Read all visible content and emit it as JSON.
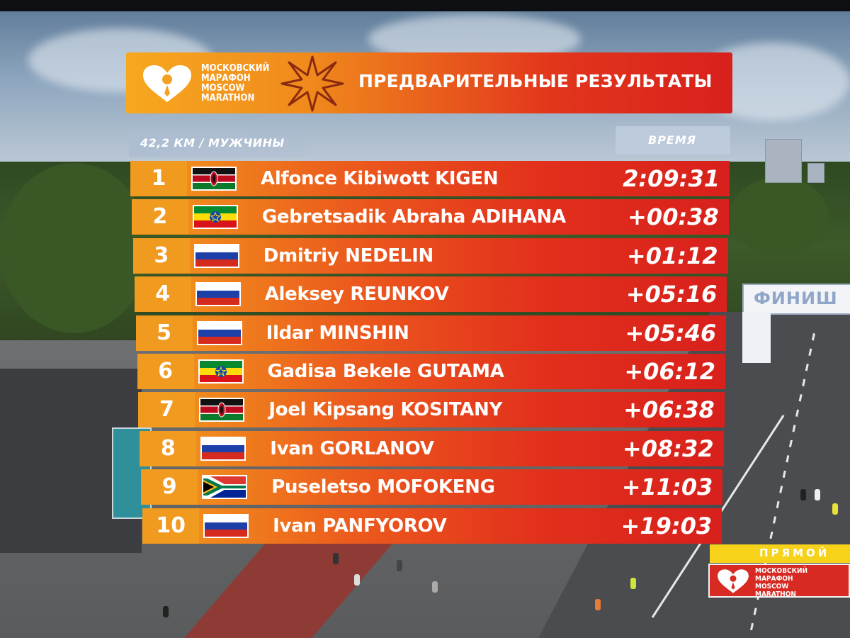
{
  "event": {
    "logo_lines": [
      "МОСКОВСКИЙ",
      "МАРАФОН",
      "MOSCOW",
      "MARATHON"
    ],
    "title": "ПРЕДВАРИТЕЛЬНЫЕ РЕЗУЛЬТАТЫ"
  },
  "category": "42,2 КМ / МУЖЧИНЫ",
  "time_header": "ВРЕМЯ",
  "results": [
    {
      "pos": "1",
      "flag": "kenya-flag",
      "name": "Alfonce Kibiwott KIGEN",
      "time": "2:09:31"
    },
    {
      "pos": "2",
      "flag": "ethiopia-flag",
      "name": "Gebretsadik Abraha ADIHANA",
      "time": "+00:38"
    },
    {
      "pos": "3",
      "flag": "russia-flag",
      "name": "Dmitriy NEDELIN",
      "time": "+01:12"
    },
    {
      "pos": "4",
      "flag": "russia-flag",
      "name": "Aleksey REUNKOV",
      "time": "+05:16"
    },
    {
      "pos": "5",
      "flag": "russia-flag",
      "name": "Ildar MINSHIN",
      "time": "+05:46"
    },
    {
      "pos": "6",
      "flag": "ethiopia-flag",
      "name": "Gadisa Bekele GUTAMA",
      "time": "+06:12"
    },
    {
      "pos": "7",
      "flag": "kenya-flag",
      "name": "Joel Kipsang KOSITANY",
      "time": "+06:38"
    },
    {
      "pos": "8",
      "flag": "russia-flag",
      "name": "Ivan GORLANOV",
      "time": "+08:32"
    },
    {
      "pos": "9",
      "flag": "south-africa-flag",
      "name": "Puseletso MOFOKENG",
      "time": "+11:03"
    },
    {
      "pos": "10",
      "flag": "russia-flag",
      "name": "Ivan PANFYOROV",
      "time": "+19:03"
    }
  ],
  "live_badge": {
    "label": "ПРЯМОЙ",
    "logo_lines": [
      "МОСКОВСКИЙ",
      "МАРАФОН",
      "MOSCOW",
      "MARATHON"
    ]
  },
  "scene": {
    "finish_sign": "ФИНИШ"
  },
  "colors": {
    "banner_orange": "#f7a81f",
    "banner_red": "#d8201c",
    "live_yellow": "#f6d21b"
  }
}
